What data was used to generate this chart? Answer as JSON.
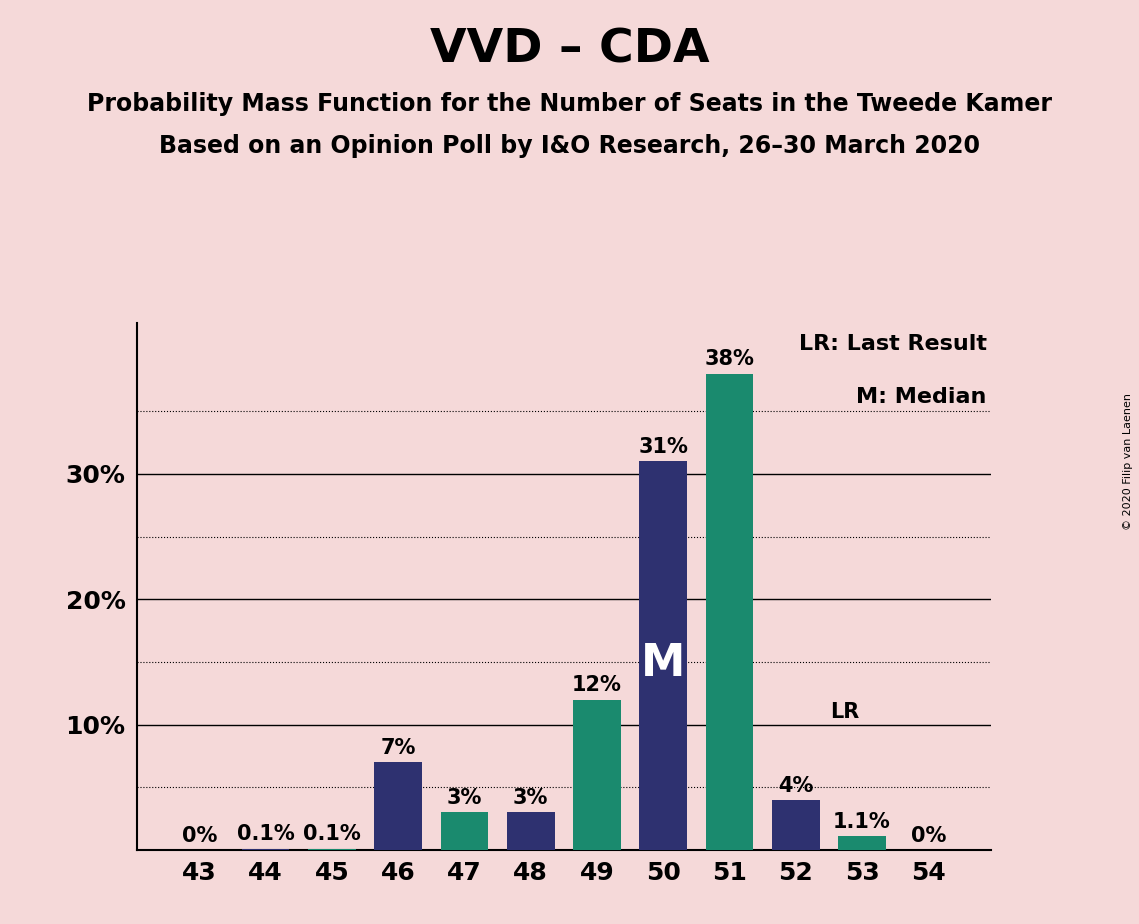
{
  "title": "VVD – CDA",
  "subtitle1": "Probability Mass Function for the Number of Seats in the Tweede Kamer",
  "subtitle2": "Based on an Opinion Poll by I&O Research, 26–30 March 2020",
  "copyright": "© 2020 Filip van Laenen",
  "categories": [
    43,
    44,
    45,
    46,
    47,
    48,
    49,
    50,
    51,
    52,
    53,
    54
  ],
  "values": [
    0.0,
    0.1,
    0.1,
    7.0,
    3.0,
    3.0,
    12.0,
    31.0,
    38.0,
    4.0,
    1.1,
    0.0
  ],
  "colors": [
    "#2e3170",
    "#2e3170",
    "#1a8a6e",
    "#2e3170",
    "#1a8a6e",
    "#2e3170",
    "#1a8a6e",
    "#2e3170",
    "#1a8a6e",
    "#2e3170",
    "#1a8a6e",
    "#2e3170"
  ],
  "labels": [
    "0%",
    "0.1%",
    "0.1%",
    "7%",
    "3%",
    "3%",
    "12%",
    "31%",
    "38%",
    "4%",
    "1.1%",
    "0%"
  ],
  "background_color": "#f5d9d9",
  "solid_yticks": [
    10,
    20,
    30
  ],
  "dotted_yticks": [
    5,
    15,
    25,
    35
  ],
  "solid_ytick_labels": [
    "10%",
    "20%",
    "30%"
  ],
  "ylim": [
    0,
    42
  ],
  "median_bar": 50,
  "lr_bar": 52,
  "median_label": "M",
  "lr_label": "LR",
  "legend_lr": "LR: Last Result",
  "legend_m": "M: Median",
  "title_fontsize": 34,
  "subtitle_fontsize": 17,
  "label_fontsize": 15,
  "tick_fontsize": 18,
  "bar_width": 0.72
}
